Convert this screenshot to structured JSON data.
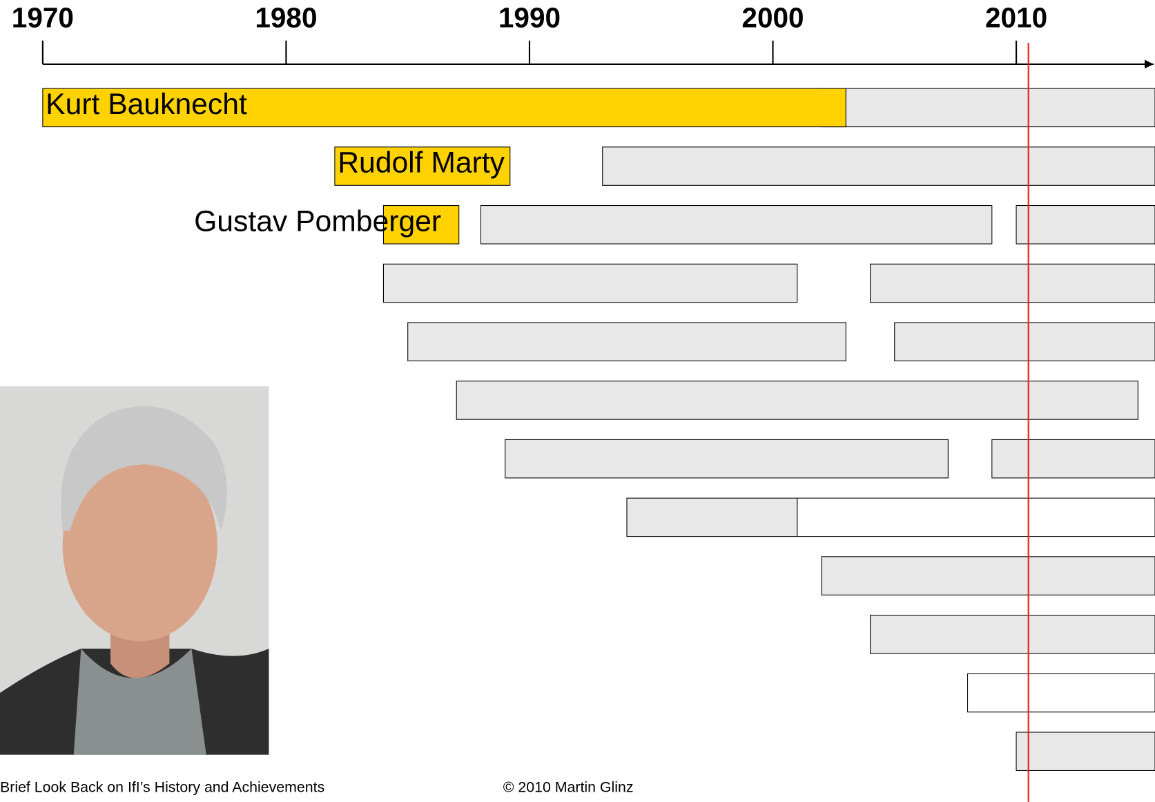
{
  "chart_data": {
    "type": "timeline",
    "xlim": [
      1970,
      2015.7
    ],
    "xticks": [
      1970,
      1980,
      1990,
      2000,
      2010
    ],
    "rows": [
      {
        "segments": [
          {
            "start": 2002,
            "end": 2015.7,
            "color": "#e8e8e8"
          },
          {
            "label": "Kurt Bauknecht",
            "start": 1970,
            "end": 2003,
            "color": "#ffd200"
          }
        ]
      },
      {
        "segments": [
          {
            "start": 1993,
            "end": 2015.7,
            "color": "#e8e8e8"
          },
          {
            "label": "Rudolf Marty",
            "start": 1982,
            "end": 1989.2,
            "color": "#ffd200"
          }
        ]
      },
      {
        "segments": [
          {
            "start": 1988,
            "end": 2009,
            "color": "#e8e8e8"
          },
          {
            "start": 2010,
            "end": 2015.7,
            "color": "#e8e8e8"
          },
          {
            "label": "Gustav Pomberger",
            "start": 1984,
            "end": 1987.1,
            "color": "#ffd200"
          }
        ]
      },
      {
        "segments": [
          {
            "start": 1984,
            "end": 2001,
            "color": "#e8e8e8"
          },
          {
            "start": 2004,
            "end": 2015.7,
            "color": "#e8e8e8"
          }
        ]
      },
      {
        "segments": [
          {
            "start": 1985,
            "end": 2003,
            "color": "#e8e8e8"
          },
          {
            "start": 2005,
            "end": 2015.7,
            "color": "#e8e8e8"
          }
        ]
      },
      {
        "segments": [
          {
            "start": 1987,
            "end": 2015,
            "color": "#e8e8e8"
          }
        ]
      },
      {
        "segments": [
          {
            "start": 1989,
            "end": 2007.2,
            "color": "#e8e8e8"
          },
          {
            "start": 2009,
            "end": 2015.7,
            "color": "#e8e8e8"
          }
        ]
      },
      {
        "segments": [
          {
            "start": 1994,
            "end": 2001,
            "color": "#e8e8e8"
          },
          {
            "start": 2001,
            "end": 2015.7,
            "color": "#ffffff"
          }
        ]
      },
      {
        "segments": [
          {
            "start": 2002,
            "end": 2015.7,
            "color": "#e8e8e8"
          }
        ]
      },
      {
        "segments": [
          {
            "start": 2004,
            "end": 2015.7,
            "color": "#e8e8e8"
          }
        ]
      },
      {
        "segments": [
          {
            "start": 2008,
            "end": 2015.7,
            "color": "#ffffff"
          }
        ]
      },
      {
        "segments": [
          {
            "start": 2010,
            "end": 2015.7,
            "color": "#e8e8e8"
          }
        ]
      }
    ],
    "marker": {
      "value": 2010.5,
      "color": "#e8231b"
    }
  },
  "footer": {
    "left": "Brief Look Back on IfI’s History and Achievements",
    "right": "© 2010 Martin Glinz"
  }
}
